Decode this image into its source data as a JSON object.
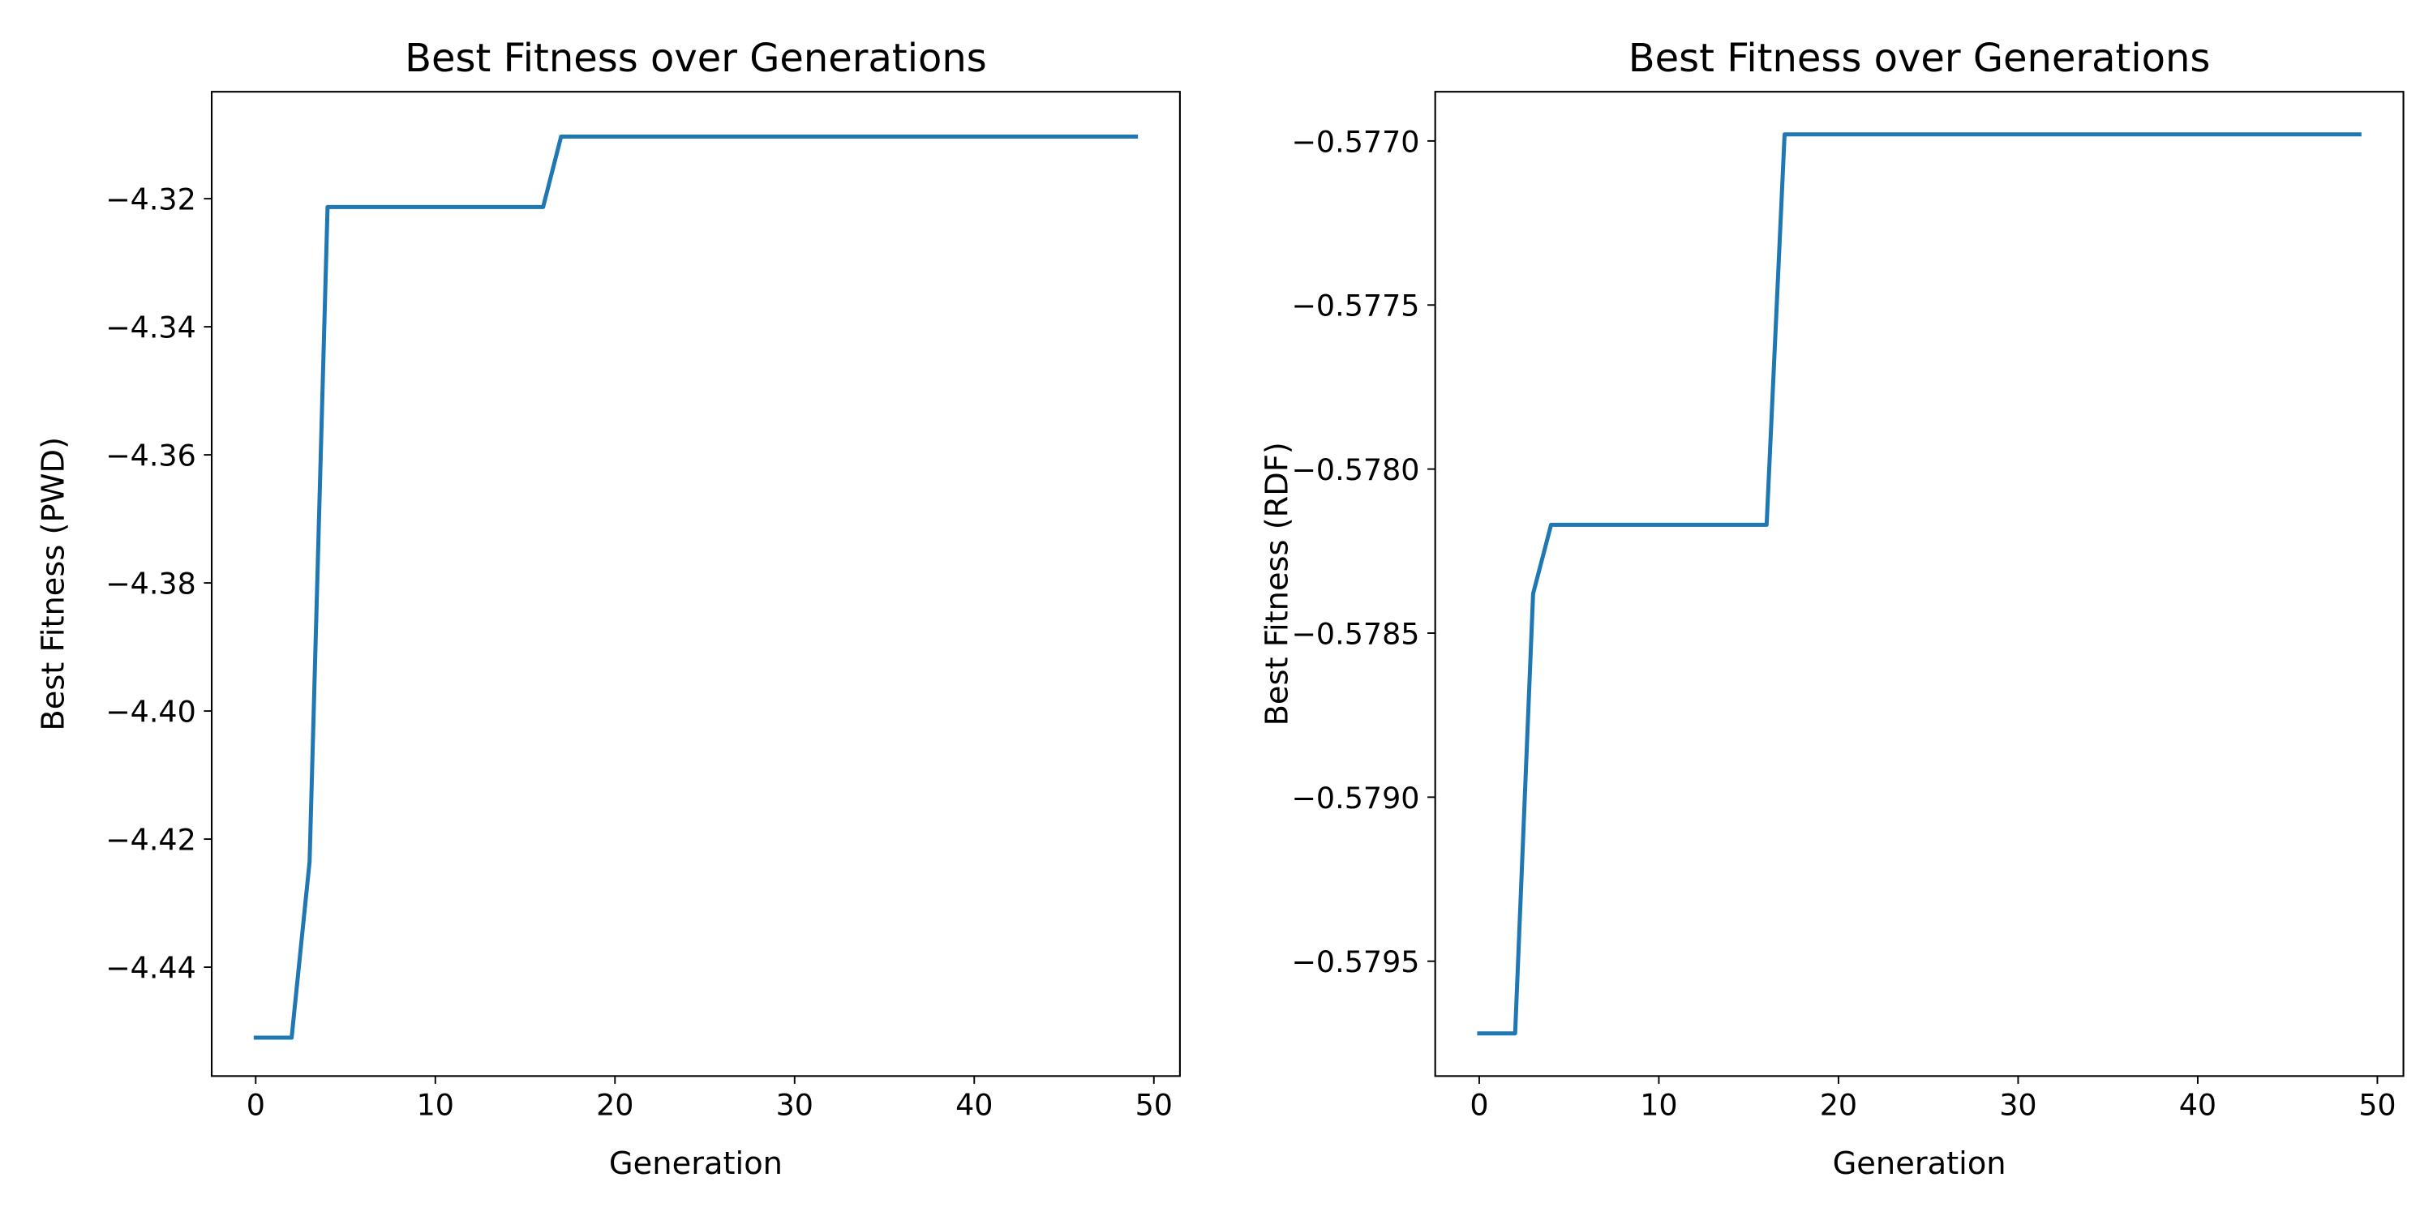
{
  "chart_data": [
    {
      "type": "line",
      "title": "Best Fitness over Generations",
      "xlabel": "Generation",
      "ylabel": "Best Fitness (PWD)",
      "xlim": [
        -2.45,
        51.45
      ],
      "ylim": [
        -4.457,
        -4.3033
      ],
      "xticks": [
        0,
        10,
        20,
        30,
        40,
        50
      ],
      "xtick_labels": [
        "0",
        "10",
        "20",
        "30",
        "40",
        "50"
      ],
      "yticks": [
        -4.44,
        -4.42,
        -4.4,
        -4.38,
        -4.36,
        -4.34,
        -4.32
      ],
      "ytick_labels": [
        "−4.44",
        "−4.42",
        "−4.40",
        "−4.38",
        "−4.36",
        "−4.34",
        "−4.32"
      ],
      "grid": false,
      "series": [
        {
          "color": "#1f77b4",
          "x": [
            0,
            1,
            2,
            3,
            4,
            5,
            6,
            7,
            8,
            9,
            10,
            11,
            12,
            13,
            14,
            15,
            16,
            17,
            18,
            19,
            20,
            21,
            22,
            23,
            24,
            25,
            26,
            27,
            28,
            29,
            30,
            31,
            32,
            33,
            34,
            35,
            36,
            37,
            38,
            39,
            40,
            41,
            42,
            43,
            44,
            45,
            46,
            47,
            48,
            49
          ],
          "y": [
            -4.451,
            -4.451,
            -4.451,
            -4.4235,
            -4.3213,
            -4.3213,
            -4.3213,
            -4.3213,
            -4.3213,
            -4.3213,
            -4.3213,
            -4.3213,
            -4.3213,
            -4.3213,
            -4.3213,
            -4.3213,
            -4.3213,
            -4.3103,
            -4.3103,
            -4.3103,
            -4.3103,
            -4.3103,
            -4.3103,
            -4.3103,
            -4.3103,
            -4.3103,
            -4.3103,
            -4.3103,
            -4.3103,
            -4.3103,
            -4.3103,
            -4.3103,
            -4.3103,
            -4.3103,
            -4.3103,
            -4.3103,
            -4.3103,
            -4.3103,
            -4.3103,
            -4.3103,
            -4.3103,
            -4.3103,
            -4.3103,
            -4.3103,
            -4.3103,
            -4.3103,
            -4.3103,
            -4.3103,
            -4.3103,
            -4.3103
          ]
        }
      ]
    },
    {
      "type": "line",
      "title": "Best Fitness over Generations",
      "xlabel": "Generation",
      "ylabel": "Best Fitness (RDF)",
      "xlim": [
        -2.45,
        51.45
      ],
      "ylim": [
        -0.57985,
        -0.57685
      ],
      "xticks": [
        0,
        10,
        20,
        30,
        40,
        50
      ],
      "xtick_labels": [
        "0",
        "10",
        "20",
        "30",
        "40",
        "50"
      ],
      "yticks": [
        -0.5795,
        -0.579,
        -0.5785,
        -0.578,
        -0.5775,
        -0.577
      ],
      "ytick_labels": [
        "−0.5795",
        "−0.5790",
        "−0.5785",
        "−0.5780",
        "−0.5775",
        "−0.5770"
      ],
      "grid": false,
      "series": [
        {
          "color": "#1f77b4",
          "x": [
            0,
            1,
            2,
            3,
            4,
            5,
            6,
            7,
            8,
            9,
            10,
            11,
            12,
            13,
            14,
            15,
            16,
            17,
            18,
            19,
            20,
            21,
            22,
            23,
            24,
            25,
            26,
            27,
            28,
            29,
            30,
            31,
            32,
            33,
            34,
            35,
            36,
            37,
            38,
            39,
            40,
            41,
            42,
            43,
            44,
            45,
            46,
            47,
            48,
            49
          ],
          "y": [
            -0.57972,
            -0.57972,
            -0.57972,
            -0.57838,
            -0.57817,
            -0.57817,
            -0.57817,
            -0.57817,
            -0.57817,
            -0.57817,
            -0.57817,
            -0.57817,
            -0.57817,
            -0.57817,
            -0.57817,
            -0.57817,
            -0.57817,
            -0.57698,
            -0.57698,
            -0.57698,
            -0.57698,
            -0.57698,
            -0.57698,
            -0.57698,
            -0.57698,
            -0.57698,
            -0.57698,
            -0.57698,
            -0.57698,
            -0.57698,
            -0.57698,
            -0.57698,
            -0.57698,
            -0.57698,
            -0.57698,
            -0.57698,
            -0.57698,
            -0.57698,
            -0.57698,
            -0.57698,
            -0.57698,
            -0.57698,
            -0.57698,
            -0.57698,
            -0.57698,
            -0.57698,
            -0.57698,
            -0.57698,
            -0.57698,
            -0.57698
          ]
        }
      ]
    }
  ]
}
